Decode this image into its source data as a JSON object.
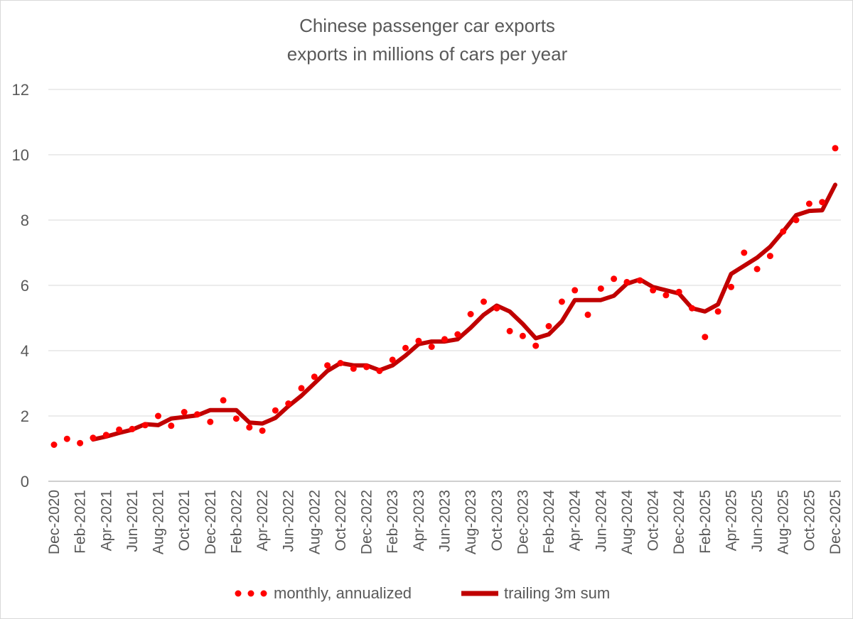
{
  "chart_data": {
    "type": "line",
    "title": "Chinese passenger car exports",
    "subtitle": "exports in millions of cars per year",
    "xlabel": "",
    "ylabel": "",
    "ylim": [
      0,
      12
    ],
    "yticks": [
      0,
      2,
      4,
      6,
      8,
      10,
      12
    ],
    "grid": true,
    "legend_position": "bottom",
    "x": [
      "Dec-2020",
      "Jan-2021",
      "Feb-2021",
      "Mar-2021",
      "Apr-2021",
      "May-2021",
      "Jun-2021",
      "Jul-2021",
      "Aug-2021",
      "Sep-2021",
      "Oct-2021",
      "Nov-2021",
      "Dec-2021",
      "Jan-2022",
      "Feb-2022",
      "Mar-2022",
      "Apr-2022",
      "May-2022",
      "Jun-2022",
      "Jul-2022",
      "Aug-2022",
      "Sep-2022",
      "Oct-2022",
      "Nov-2022",
      "Dec-2022",
      "Jan-2023",
      "Feb-2023",
      "Mar-2023",
      "Apr-2023",
      "May-2023",
      "Jun-2023",
      "Jul-2023",
      "Aug-2023",
      "Sep-2023",
      "Oct-2023",
      "Nov-2023",
      "Dec-2023",
      "Jan-2024",
      "Feb-2024",
      "Mar-2024",
      "Apr-2024",
      "May-2024",
      "Jun-2024",
      "Jul-2024",
      "Aug-2024",
      "Sep-2024",
      "Oct-2024",
      "Nov-2024",
      "Dec-2024",
      "Jan-2025",
      "Feb-2025",
      "Mar-2025",
      "Apr-2025",
      "May-2025",
      "Jun-2025",
      "Jul-2025",
      "Aug-2025",
      "Sep-2025",
      "Oct-2025",
      "Nov-2025",
      "Dec-2025"
    ],
    "x_tick_labels": [
      "Dec-2020",
      "Feb-2021",
      "Apr-2021",
      "Jun-2021",
      "Aug-2021",
      "Oct-2021",
      "Dec-2021",
      "Feb-2022",
      "Apr-2022",
      "Jun-2022",
      "Aug-2022",
      "Oct-2022",
      "Dec-2022",
      "Feb-2023",
      "Apr-2023",
      "Jun-2023",
      "Aug-2023",
      "Oct-2023",
      "Dec-2023",
      "Feb-2024",
      "Apr-2024",
      "Jun-2024",
      "Aug-2024",
      "Oct-2024",
      "Dec-2024",
      "Feb-2025",
      "Apr-2025",
      "Jun-2025",
      "Aug-2025",
      "Oct-2025",
      "Dec-2025"
    ],
    "series": [
      {
        "name": "monthly, annualized",
        "style": "dotted",
        "color": "#ff0000",
        "values": [
          1.12,
          1.3,
          1.17,
          1.33,
          1.42,
          1.58,
          1.6,
          1.72,
          2.0,
          1.7,
          2.12,
          2.05,
          1.82,
          2.48,
          1.92,
          1.65,
          1.55,
          2.17,
          2.38,
          2.85,
          3.2,
          3.55,
          3.62,
          3.45,
          3.5,
          3.38,
          3.72,
          4.08,
          4.3,
          4.12,
          4.35,
          4.5,
          5.12,
          5.5,
          5.3,
          4.6,
          4.45,
          4.15,
          4.75,
          5.5,
          5.85,
          5.1,
          5.9,
          6.2,
          6.1,
          6.15,
          5.85,
          5.7,
          5.8,
          5.3,
          4.42,
          5.2,
          5.95,
          7.0,
          6.5,
          6.9,
          7.65,
          8.0,
          8.5,
          8.55,
          10.2
        ]
      },
      {
        "name": "trailing 3m sum",
        "style": "solid",
        "color": "#c00000",
        "start_index": 3,
        "values": [
          null,
          null,
          null,
          1.28,
          1.37,
          1.48,
          1.58,
          1.75,
          1.72,
          1.92,
          1.97,
          2.02,
          2.18,
          2.18,
          2.18,
          1.8,
          1.77,
          1.94,
          2.3,
          2.62,
          3.0,
          3.38,
          3.62,
          3.55,
          3.55,
          3.4,
          3.55,
          3.85,
          4.2,
          4.28,
          4.28,
          4.35,
          4.7,
          5.1,
          5.38,
          5.2,
          4.82,
          4.38,
          4.5,
          4.9,
          5.55,
          5.55,
          5.55,
          5.68,
          6.05,
          6.18,
          5.95,
          5.85,
          5.75,
          5.3,
          5.2,
          5.42,
          6.35,
          6.6,
          6.85,
          7.18,
          7.65,
          8.15,
          8.28,
          8.3,
          9.08
        ]
      }
    ]
  },
  "legend": {
    "monthly_label": "monthly, annualized",
    "trailing_label": "trailing 3m sum"
  },
  "colors": {
    "monthly": "#ff0000",
    "trailing": "#c00000",
    "grid": "#d9d9d9",
    "axis": "#595959"
  }
}
